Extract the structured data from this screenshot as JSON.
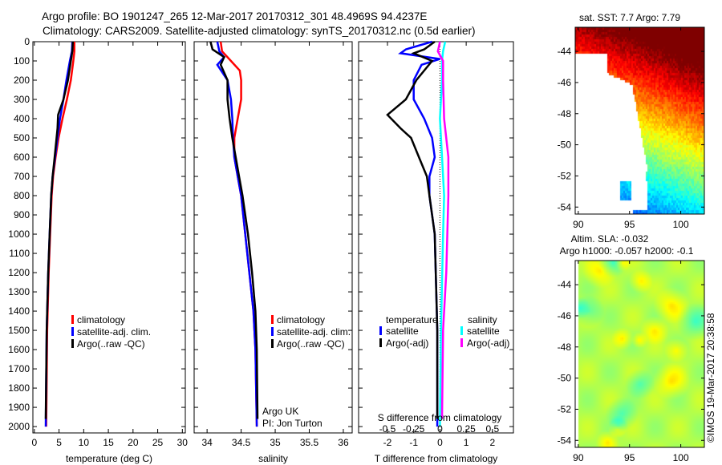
{
  "title": {
    "line1": "Argo profile: BO 1901247_265 12-Mar-2017 20170312_301 48.4969S 94.4237E",
    "line2": "Climatology: CARS2009. Satellite-adjusted climatology: synTS_20170312.nc (0.5d earlier)"
  },
  "colors": {
    "climatology": "#ff0000",
    "satellite": "#0000ff",
    "argo": "#000000",
    "sal_satellite": "#00ffff",
    "sal_argo": "#ff00ff"
  },
  "chart_data": [
    {
      "type": "line",
      "xlabel": "temperature (deg C)",
      "xlim": [
        -0.3,
        30.6
      ],
      "xticks": [
        0,
        5,
        10,
        15,
        20,
        25,
        30
      ],
      "ylim": [
        2033,
        0
      ],
      "yticks": [
        0,
        100,
        200,
        300,
        400,
        500,
        600,
        700,
        800,
        900,
        1000,
        1100,
        1200,
        1300,
        1400,
        1500,
        1600,
        1700,
        1800,
        1900,
        2000
      ],
      "series": [
        {
          "name": "climatology",
          "color": "#ff0000",
          "depth": [
            0,
            50,
            100,
            200,
            300,
            400,
            500,
            600,
            700,
            800,
            1000,
            1200,
            1500,
            2000
          ],
          "values": [
            8.1,
            8.1,
            7.9,
            7.4,
            6.6,
            5.7,
            4.9,
            4.3,
            3.8,
            3.5,
            3.2,
            2.9,
            2.6,
            2.4
          ]
        },
        {
          "name": "satellite-adj. clim.",
          "color": "#0000ff",
          "depth": [
            0,
            50,
            100,
            200,
            300,
            400,
            500,
            600,
            700,
            800,
            1000,
            1200,
            1500,
            2000
          ],
          "values": [
            7.7,
            7.6,
            7.2,
            6.5,
            5.9,
            5.2,
            4.7,
            4.2,
            3.7,
            3.4,
            3.1,
            2.8,
            2.5,
            2.3
          ]
        },
        {
          "name": "Argo(..raw -QC)",
          "color": "#000000",
          "depth": [
            0,
            50,
            100,
            200,
            300,
            380,
            450,
            500,
            600,
            700,
            800,
            1000,
            1200,
            1500,
            1960
          ],
          "values": [
            7.8,
            7.7,
            7.4,
            6.8,
            5.9,
            4.8,
            4.7,
            4.5,
            4.1,
            3.7,
            3.4,
            3.1,
            2.8,
            2.5,
            2.3
          ]
        }
      ],
      "legend": [
        "climatology",
        "satellite-adj. clim.",
        "Argo(..raw -QC)"
      ]
    },
    {
      "type": "line",
      "xlabel": "salinity",
      "xlim": [
        33.81,
        36.13
      ],
      "xticks": [
        34,
        34.5,
        35,
        35.5,
        36
      ],
      "xticklabels": [
        "34",
        "34.5",
        "35",
        "35.5",
        "36"
      ],
      "ylim": [
        2033,
        0
      ],
      "series": [
        {
          "name": "climatology",
          "color": "#ff0000",
          "depth": [
            0,
            50,
            100,
            150,
            200,
            300,
            400,
            500,
            600,
            700,
            800,
            1000,
            1200,
            1400,
            1600,
            2000
          ],
          "values": [
            34.2,
            34.22,
            34.35,
            34.48,
            34.5,
            34.5,
            34.45,
            34.4,
            34.4,
            34.45,
            34.5,
            34.56,
            34.62,
            34.68,
            34.71,
            34.73
          ]
        },
        {
          "name": "satellite-adj. clim.",
          "color": "#0000ff",
          "depth": [
            0,
            50,
            80,
            120,
            200,
            300,
            400,
            500,
            600,
            700,
            800,
            1000,
            1200,
            1400,
            1600,
            2000
          ],
          "values": [
            34.15,
            34.18,
            34.25,
            34.15,
            34.3,
            34.35,
            34.37,
            34.38,
            34.4,
            34.45,
            34.5,
            34.56,
            34.62,
            34.68,
            34.71,
            34.73
          ]
        },
        {
          "name": "Argo(..raw -QC)",
          "color": "#000000",
          "depth": [
            0,
            40,
            80,
            120,
            200,
            300,
            400,
            500,
            600,
            700,
            800,
            1000,
            1200,
            1400,
            1600,
            1960
          ],
          "values": [
            34.05,
            34.08,
            34.25,
            34.2,
            34.3,
            34.3,
            34.33,
            34.37,
            34.42,
            34.47,
            34.52,
            34.6,
            34.66,
            34.71,
            34.73,
            34.74
          ]
        }
      ],
      "legend": [
        "climatology",
        "satellite-adj. clim.",
        "Argo(..raw -QC)"
      ],
      "annotation": [
        "Argo UK",
        "PI: Jon Turton"
      ]
    },
    {
      "type": "line",
      "xlabel": "T difference from climatology",
      "xlim": [
        -3.1,
        2.8
      ],
      "xticks": [
        -2,
        -1,
        0,
        1,
        2
      ],
      "x2label": "S difference from climatology",
      "x2ticks": [
        -0.5,
        -0.25,
        0,
        0.25,
        0.5
      ],
      "x2ticklabels": [
        "-0.5",
        "-0.25",
        "0",
        "0.25",
        "0.5"
      ],
      "ylim": [
        2033,
        0
      ],
      "series": [
        {
          "name": "temperature satellite",
          "color": "#0000ff",
          "axis": "T",
          "depth": [
            0,
            40,
            60,
            90,
            120,
            200,
            300,
            400,
            500,
            600,
            700,
            800,
            1000,
            1500,
            2000
          ],
          "values": [
            -0.3,
            -1.3,
            -1.5,
            0,
            -0.7,
            -1.0,
            -1.0,
            -0.6,
            -0.3,
            -0.2,
            -0.4,
            -0.4,
            -0.2,
            -0.1,
            -0.1
          ]
        },
        {
          "name": "temperature Argo(-adj)",
          "color": "#000000",
          "axis": "T",
          "depth": [
            0,
            40,
            60,
            100,
            150,
            200,
            300,
            380,
            450,
            500,
            600,
            700,
            800,
            1000,
            1500,
            1960
          ],
          "values": [
            -0.2,
            -0.6,
            -1.0,
            -0.3,
            -0.6,
            -0.9,
            -1.3,
            -2.0,
            -1.5,
            -1.1,
            -0.8,
            -0.5,
            -0.4,
            -0.2,
            -0.1,
            -0.1
          ]
        },
        {
          "name": "salinity satellite",
          "color": "#00ffff",
          "axis": "S",
          "depth": [
            0,
            50,
            100,
            200,
            400,
            600,
            800,
            1000,
            1500,
            2000
          ],
          "values": [
            0.05,
            0.03,
            0.02,
            0.02,
            0.0,
            0.02,
            0.04,
            0.03,
            0.01,
            0.0
          ]
        },
        {
          "name": "salinity Argo(-adj)",
          "color": "#ff00ff",
          "axis": "S",
          "depth": [
            0,
            50,
            100,
            200,
            400,
            600,
            800,
            1000,
            1200,
            1500,
            1960
          ],
          "values": [
            0.0,
            -0.02,
            0.03,
            0.03,
            0.04,
            0.08,
            0.08,
            0.07,
            0.06,
            0.03,
            0.02
          ]
        }
      ],
      "legend": {
        "temp_header": "temperature",
        "sal_header": "salinity",
        "items": [
          "satellite",
          "Argo(-adj)",
          "satellite",
          "Argo(-adj)"
        ]
      }
    },
    {
      "type": "heatmap",
      "title": "sat. SST: 7.7 Argo: 7.79",
      "xlim": [
        89.7,
        102.3
      ],
      "ylim": [
        -54.45,
        -42.45
      ],
      "xticks": [
        90,
        95,
        100
      ],
      "yticks": [
        -44,
        -46,
        -48,
        -50,
        -52,
        -54
      ]
    },
    {
      "type": "heatmap",
      "title1": "Altim. SLA: -0.032",
      "title2": "Argo h1000: -0.057 h2000: -0.1",
      "xlim": [
        89.7,
        102.3
      ],
      "ylim": [
        -54.45,
        -42.45
      ],
      "xticks": [
        90,
        95,
        100
      ],
      "yticks": [
        -44,
        -46,
        -48,
        -50,
        -52,
        -54
      ]
    }
  ],
  "footer": {
    "stamp": "©IMOS 19-Mar-2017 20:38:58"
  }
}
